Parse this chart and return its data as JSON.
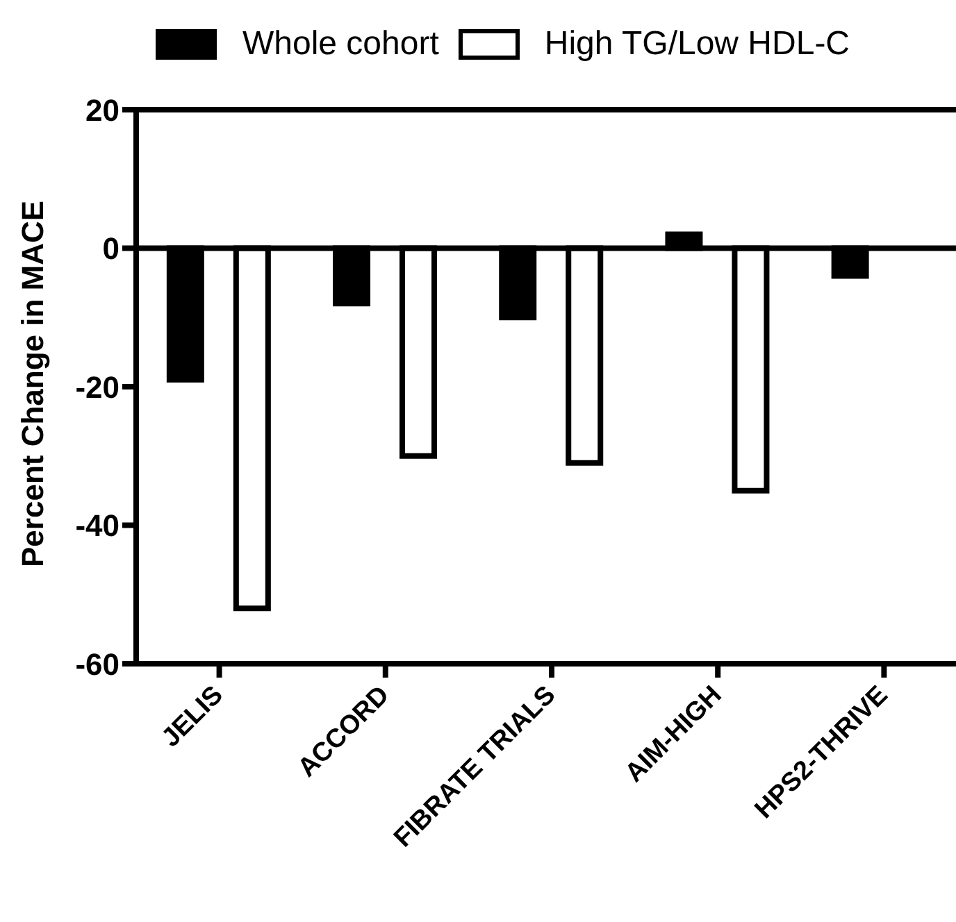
{
  "chart_data": {
    "type": "bar",
    "ylabel": "Percent Change in MACE",
    "categories": [
      "JELIS",
      "ACCORD",
      "FIBRATE TRIALS",
      "AIM-HIGH",
      "HPS2-THRIVE"
    ],
    "series": [
      {
        "name": "Whole cohort",
        "color": "#000000",
        "values": [
          -19,
          -8,
          -10,
          2,
          -4
        ]
      },
      {
        "name": "High TG/Low HDL-C",
        "color": "#ffffff",
        "values": [
          -52,
          -30,
          -31,
          -35,
          null
        ]
      }
    ],
    "ylim": [
      -60,
      20
    ],
    "yticks": [
      -60,
      -40,
      -20,
      0,
      20
    ],
    "ref_lines": [
      {
        "axis": "y",
        "value": 0
      }
    ],
    "legend": "top",
    "grid": false
  }
}
